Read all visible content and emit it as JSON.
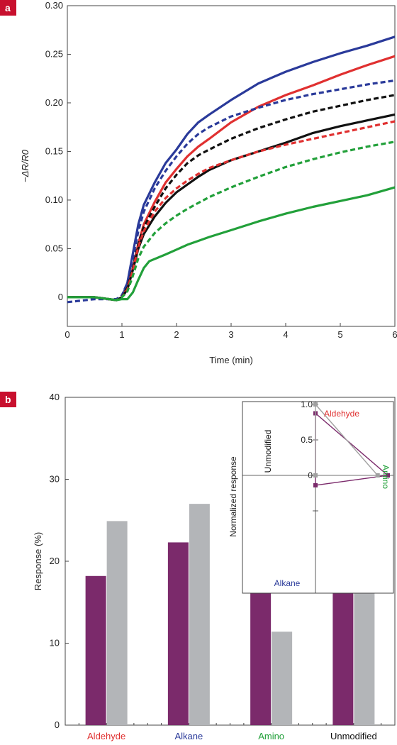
{
  "chart_data": [
    {
      "panel": "a",
      "type": "line",
      "xlabel": "Time (min)",
      "ylabel": "−ΔR/R0",
      "xlim": [
        0,
        6
      ],
      "ylim": [
        -0.03,
        0.3
      ],
      "xticks": [
        "0",
        "1",
        "2",
        "3",
        "4",
        "5",
        "6"
      ],
      "yticks": [
        "0",
        "0.05",
        "0.10",
        "0.15",
        "0.20",
        "0.25",
        "0.30"
      ],
      "grid": false,
      "series": [
        {
          "color": "#2a3a9a",
          "style": "solid",
          "x": [
            0,
            0.5,
            0.9,
            1.0,
            1.1,
            1.2,
            1.3,
            1.4,
            1.6,
            1.8,
            2.0,
            2.2,
            2.4,
            2.6,
            3.0,
            3.5,
            4.0,
            4.5,
            5.0,
            5.5,
            6.0
          ],
          "y": [
            0,
            0,
            -0.003,
            0.0,
            0.015,
            0.045,
            0.075,
            0.095,
            0.118,
            0.138,
            0.152,
            0.168,
            0.18,
            0.188,
            0.203,
            0.22,
            0.232,
            0.242,
            0.251,
            0.259,
            0.268
          ]
        },
        {
          "color": "#e03030",
          "style": "solid",
          "x": [
            0,
            0.5,
            0.9,
            1.0,
            1.1,
            1.2,
            1.3,
            1.4,
            1.6,
            1.8,
            2.0,
            2.2,
            2.4,
            2.6,
            3.0,
            3.5,
            4.0,
            4.5,
            5.0,
            5.5,
            6.0
          ],
          "y": [
            0,
            0,
            -0.003,
            0.0,
            0.01,
            0.03,
            0.055,
            0.075,
            0.098,
            0.118,
            0.132,
            0.145,
            0.155,
            0.163,
            0.18,
            0.196,
            0.208,
            0.218,
            0.229,
            0.239,
            0.248
          ]
        },
        {
          "color": "#2a3a9a",
          "style": "dashed",
          "x": [
            0,
            0.5,
            0.9,
            1.0,
            1.1,
            1.2,
            1.3,
            1.4,
            1.6,
            1.8,
            2.0,
            2.2,
            2.4,
            2.6,
            3.0,
            3.5,
            4.0,
            4.5,
            5.0,
            5.5,
            6.0
          ],
          "y": [
            -0.005,
            -0.002,
            -0.002,
            0.002,
            0.015,
            0.04,
            0.068,
            0.088,
            0.112,
            0.13,
            0.145,
            0.158,
            0.168,
            0.175,
            0.186,
            0.195,
            0.203,
            0.209,
            0.214,
            0.219,
            0.223
          ]
        },
        {
          "color": "#111111",
          "style": "dashed",
          "x": [
            0,
            0.5,
            0.9,
            1.0,
            1.1,
            1.2,
            1.3,
            1.4,
            1.6,
            1.8,
            2.0,
            2.2,
            2.4,
            2.6,
            3.0,
            3.5,
            4.0,
            4.5,
            5.0,
            5.5,
            6.0
          ],
          "y": [
            0,
            0,
            -0.003,
            0.0,
            0.01,
            0.03,
            0.055,
            0.072,
            0.093,
            0.112,
            0.126,
            0.138,
            0.146,
            0.152,
            0.163,
            0.174,
            0.183,
            0.191,
            0.197,
            0.203,
            0.208
          ]
        },
        {
          "color": "#111111",
          "style": "solid",
          "x": [
            0,
            0.5,
            0.9,
            1.0,
            1.1,
            1.2,
            1.3,
            1.4,
            1.6,
            1.8,
            2.0,
            2.2,
            2.4,
            2.6,
            3.0,
            3.5,
            4.0,
            4.5,
            5.0,
            5.5,
            6.0
          ],
          "y": [
            0,
            0,
            -0.003,
            0.0,
            0.008,
            0.028,
            0.05,
            0.065,
            0.083,
            0.097,
            0.108,
            0.116,
            0.124,
            0.131,
            0.141,
            0.15,
            0.159,
            0.169,
            0.176,
            0.182,
            0.188
          ]
        },
        {
          "color": "#e03030",
          "style": "dashed",
          "x": [
            0,
            0.5,
            0.9,
            1.0,
            1.1,
            1.2,
            1.3,
            1.4,
            1.6,
            1.8,
            2.0,
            2.2,
            2.4,
            2.6,
            3.0,
            3.5,
            4.0,
            4.5,
            5.0,
            5.5,
            6.0
          ],
          "y": [
            0,
            0,
            -0.003,
            0.0,
            0.008,
            0.028,
            0.052,
            0.068,
            0.088,
            0.102,
            0.112,
            0.12,
            0.127,
            0.133,
            0.141,
            0.15,
            0.157,
            0.163,
            0.169,
            0.175,
            0.181
          ]
        },
        {
          "color": "#22a03a",
          "style": "dashed",
          "x": [
            0,
            0.5,
            0.9,
            1.0,
            1.1,
            1.2,
            1.3,
            1.4,
            1.6,
            1.8,
            2.0,
            2.2,
            2.4,
            2.6,
            3.0,
            3.5,
            4.0,
            4.5,
            5.0,
            5.5,
            6.0
          ],
          "y": [
            0,
            0,
            -0.003,
            0.0,
            0.006,
            0.022,
            0.04,
            0.052,
            0.066,
            0.076,
            0.084,
            0.091,
            0.097,
            0.103,
            0.113,
            0.124,
            0.134,
            0.142,
            0.149,
            0.155,
            0.16
          ]
        },
        {
          "color": "#22a03a",
          "style": "solid",
          "x": [
            0,
            0.5,
            0.9,
            1.0,
            1.1,
            1.2,
            1.3,
            1.4,
            1.5,
            1.8,
            2.0,
            2.2,
            2.4,
            2.6,
            3.0,
            3.5,
            4.0,
            4.5,
            5.0,
            5.5,
            6.0
          ],
          "y": [
            0,
            0,
            -0.003,
            -0.002,
            -0.002,
            0.005,
            0.018,
            0.03,
            0.037,
            0.044,
            0.049,
            0.054,
            0.058,
            0.062,
            0.069,
            0.078,
            0.086,
            0.093,
            0.099,
            0.105,
            0.113
          ]
        }
      ]
    },
    {
      "panel": "b",
      "type": "bar",
      "ylabel": "Response (%)",
      "ylim": [
        0,
        40
      ],
      "yticks": [
        "0",
        "10",
        "20",
        "30",
        "40"
      ],
      "categories": [
        "Aldehyde",
        "Alkane",
        "Amino",
        "Unmodified"
      ],
      "category_colors": [
        "#e03030",
        "#2a3a9a",
        "#22a03a",
        "#111111"
      ],
      "series": [
        {
          "color": "#7b2a6b",
          "values": [
            18.2,
            22.3,
            16.1,
            20.9
          ]
        },
        {
          "color": "#b3b5b8",
          "values": [
            24.9,
            27.0,
            11.4,
            18.9
          ]
        }
      ],
      "grid": false
    },
    {
      "panel": "b-inset",
      "type": "radar",
      "ylabel": "Normalized response",
      "axes": [
        "Aldehyde",
        "Amino",
        "Alkane",
        "Unmodified"
      ],
      "axis_colors": [
        "#e03030",
        "#22a03a",
        "#2a3a9a",
        "#111111"
      ],
      "rlim": [
        -1,
        1
      ],
      "rticks": [
        "1.0",
        "0.5",
        "0"
      ],
      "series": [
        {
          "color": "#7b2a6b",
          "values": [
            0.75,
            1.0,
            -0.72,
            -1.0
          ]
        },
        {
          "color": "#a0a0a0",
          "values": [
            1.0,
            0.72,
            -1.0,
            -1.0
          ]
        }
      ]
    }
  ],
  "panels": [
    {
      "label": "a"
    },
    {
      "label": "b"
    }
  ]
}
